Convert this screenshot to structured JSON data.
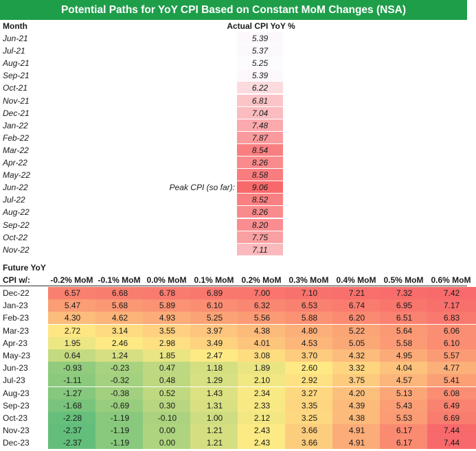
{
  "title": "Potential Paths for YoY CPI Based on Constant MoM Changes (NSA)",
  "actual": {
    "month_header": "Month",
    "value_header": "Actual CPI YoY %",
    "rows": [
      {
        "month": "Jun-21",
        "value": "5.39",
        "note": ""
      },
      {
        "month": "Jul-21",
        "value": "5.37",
        "note": ""
      },
      {
        "month": "Aug-21",
        "value": "5.25",
        "note": ""
      },
      {
        "month": "Sep-21",
        "value": "5.39",
        "note": ""
      },
      {
        "month": "Oct-21",
        "value": "6.22",
        "note": ""
      },
      {
        "month": "Nov-21",
        "value": "6.81",
        "note": ""
      },
      {
        "month": "Dec-21",
        "value": "7.04",
        "note": ""
      },
      {
        "month": "Jan-22",
        "value": "7.48",
        "note": ""
      },
      {
        "month": "Feb-22",
        "value": "7.87",
        "note": ""
      },
      {
        "month": "Mar-22",
        "value": "8.54",
        "note": ""
      },
      {
        "month": "Apr-22",
        "value": "8.26",
        "note": ""
      },
      {
        "month": "May-22",
        "value": "8.58",
        "note": ""
      },
      {
        "month": "Jun-22",
        "value": "9.06",
        "note": "Peak CPI (so far):"
      },
      {
        "month": "Jul-22",
        "value": "8.52",
        "note": ""
      },
      {
        "month": "Aug-22",
        "value": "8.26",
        "note": ""
      },
      {
        "month": "Sep-22",
        "value": "8.20",
        "note": ""
      },
      {
        "month": "Oct-22",
        "value": "7.75",
        "note": ""
      },
      {
        "month": "Nov-22",
        "value": "7.11",
        "note": ""
      }
    ]
  },
  "future": {
    "label": "Future YoY",
    "row_header": "CPI w/:",
    "columns": [
      "-0.2% MoM",
      "-0.1% MoM",
      "0.0% MoM",
      "0.1% MoM",
      "0.2% MoM",
      "0.3% MoM",
      "0.4% MoM",
      "0.5% MoM",
      "0.6% MoM"
    ],
    "rows": [
      {
        "month": "Dec-22",
        "values": [
          "6.57",
          "6.68",
          "6.78",
          "6.89",
          "7.00",
          "7.10",
          "7.21",
          "7.32",
          "7.42"
        ]
      },
      {
        "month": "Jan-23",
        "values": [
          "5.47",
          "5.68",
          "5.89",
          "6.10",
          "6.32",
          "6.53",
          "6.74",
          "6.95",
          "7.17"
        ]
      },
      {
        "month": "Feb-23",
        "values": [
          "4.30",
          "4.62",
          "4.93",
          "5.25",
          "5.56",
          "5.88",
          "6.20",
          "6.51",
          "6.83"
        ]
      },
      {
        "month": "Mar-23",
        "values": [
          "2.72",
          "3.14",
          "3.55",
          "3.97",
          "4.38",
          "4.80",
          "5.22",
          "5.64",
          "6.06"
        ]
      },
      {
        "month": "Apr-23",
        "values": [
          "1.95",
          "2.46",
          "2.98",
          "3.49",
          "4.01",
          "4.53",
          "5.05",
          "5.58",
          "6.10"
        ]
      },
      {
        "month": "May-23",
        "values": [
          "0.64",
          "1.24",
          "1.85",
          "2.47",
          "3.08",
          "3.70",
          "4.32",
          "4.95",
          "5.57"
        ]
      },
      {
        "month": "Jun-23",
        "values": [
          "-0.93",
          "-0.23",
          "0.47",
          "1.18",
          "1.89",
          "2.60",
          "3.32",
          "4.04",
          "4.77"
        ]
      },
      {
        "month": "Jul-23",
        "values": [
          "-1.11",
          "-0.32",
          "0.48",
          "1.29",
          "2.10",
          "2.92",
          "3.75",
          "4.57",
          "5.41"
        ]
      },
      {
        "month": "Aug-23",
        "values": [
          "-1.27",
          "-0.38",
          "0.52",
          "1.43",
          "2.34",
          "3.27",
          "4.20",
          "5.13",
          "6.08"
        ]
      },
      {
        "month": "Sep-23",
        "values": [
          "-1.68",
          "-0.69",
          "0.30",
          "1.31",
          "2.33",
          "3.35",
          "4.39",
          "5.43",
          "6.49"
        ]
      },
      {
        "month": "Oct-23",
        "values": [
          "-2.28",
          "-1.19",
          "-0.10",
          "1.00",
          "2.12",
          "3.25",
          "4.38",
          "5.53",
          "6.69"
        ]
      },
      {
        "month": "Nov-23",
        "values": [
          "-2.37",
          "-1.19",
          "0.00",
          "1.21",
          "2.43",
          "3.66",
          "4.91",
          "6.17",
          "7.44"
        ]
      },
      {
        "month": "Dec-23",
        "values": [
          "-2.37",
          "-1.19",
          "0.00",
          "1.21",
          "2.43",
          "3.66",
          "4.91",
          "6.17",
          "7.44"
        ]
      }
    ]
  },
  "colors": {
    "banner": "#1f9e4a",
    "low": "#63be7b",
    "mid": "#ffeb84",
    "high": "#f8696b",
    "actual_low": "#fcfcff",
    "actual_high": "#f8696b"
  }
}
